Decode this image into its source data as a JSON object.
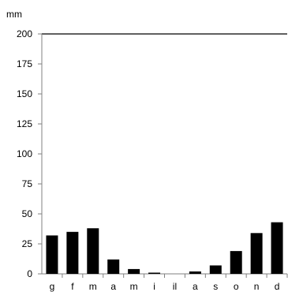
{
  "chart_data": {
    "type": "bar",
    "title": "",
    "xlabel": "",
    "ylabel": "mm",
    "categories": [
      "g",
      "f",
      "m",
      "a",
      "m",
      "i",
      "il",
      "a",
      "s",
      "o",
      "n",
      "d"
    ],
    "series": [
      {
        "values": [
          32,
          35,
          38,
          12,
          4,
          1,
          0,
          2,
          7,
          19,
          34,
          43
        ]
      }
    ],
    "ylim": [
      0,
      200
    ],
    "yticks": [
      0,
      25,
      50,
      75,
      100,
      125,
      150,
      175,
      200
    ],
    "grid": false,
    "legend": "none",
    "colors": {
      "bar": "#000000",
      "axis": "#808080",
      "frame": "#000000"
    }
  }
}
